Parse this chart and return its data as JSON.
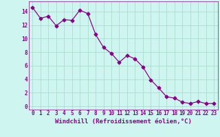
{
  "xlabel": "Windchill (Refroidissement éolien,°C)",
  "x": [
    0,
    1,
    2,
    3,
    4,
    5,
    6,
    7,
    8,
    9,
    10,
    11,
    12,
    13,
    14,
    15,
    16,
    17,
    18,
    19,
    20,
    21,
    22,
    23
  ],
  "y": [
    14.6,
    13.0,
    13.3,
    11.9,
    12.8,
    12.7,
    14.2,
    13.7,
    10.6,
    8.7,
    7.8,
    6.5,
    7.5,
    7.0,
    5.8,
    3.9,
    2.7,
    1.4,
    1.2,
    0.6,
    0.4,
    0.7,
    0.4,
    0.4
  ],
  "line_color": "#8B008B",
  "marker": "D",
  "marker_size": 2.5,
  "bg_color": "#cef5f0",
  "grid_color": "#aaddcc",
  "ylim": [
    -0.5,
    15.5
  ],
  "xlim": [
    -0.5,
    23.5
  ],
  "yticks": [
    0,
    2,
    4,
    6,
    8,
    10,
    12,
    14
  ],
  "xticks": [
    0,
    1,
    2,
    3,
    4,
    5,
    6,
    7,
    8,
    9,
    10,
    11,
    12,
    13,
    14,
    15,
    16,
    17,
    18,
    19,
    20,
    21,
    22,
    23
  ],
  "tick_fontsize": 5.5,
  "xlabel_fontsize": 6.5
}
